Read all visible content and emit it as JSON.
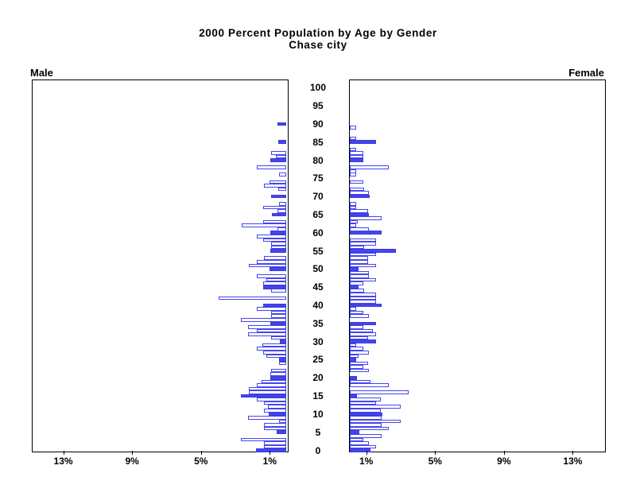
{
  "title": {
    "line1": "2000 Percent Population by Age by Gender",
    "line2": "Chase city"
  },
  "left_label": "Male",
  "right_label": "Female",
  "chart_data": {
    "type": "bar",
    "subtype": "population-pyramid",
    "title": "2000 Percent Population by Age by Gender",
    "subtitle": "Chase city",
    "unit": "percent of population",
    "orientation": "horizontal back-to-back",
    "age_axis": {
      "min": 0,
      "max": 100,
      "label_step": 5,
      "tick_labels": [
        "0",
        "5",
        "10",
        "15",
        "20",
        "25",
        "30",
        "35",
        "40",
        "45",
        "50",
        "55",
        "60",
        "65",
        "70",
        "75",
        "80",
        "85",
        "90",
        "95",
        "100"
      ]
    },
    "pct_axis": {
      "tick_values": [
        1,
        5,
        9,
        13
      ],
      "male_tick_labels": [
        "13%",
        "9%",
        "5%",
        "1%"
      ],
      "female_tick_labels": [
        "1%",
        "5%",
        "9%",
        "13%"
      ],
      "max": 14.8,
      "grid": false
    },
    "filled_bar_age_multiple": 5,
    "legend_position": "none",
    "series": [
      {
        "name": "Male",
        "side": "left",
        "values_by_age": [
          1.77,
          1.31,
          1.31,
          2.62,
          0,
          0.55,
          1.31,
          1.31,
          0.43,
          2.2,
          1.0,
          1.31,
          1.08,
          1.31,
          1.7,
          2.65,
          2.18,
          2.18,
          1.69,
          1.41,
          0.92,
          0.92,
          0.88,
          0,
          0.43,
          0.43,
          1.15,
          1.34,
          1.72,
          1.38,
          0.38,
          0.88,
          2.2,
          1.72,
          2.2,
          0.92,
          2.62,
          0.88,
          0.88,
          1.72,
          1.34,
          0,
          3.92,
          0,
          0.88,
          1.34,
          1.34,
          1.15,
          1.69,
          0,
          0.95,
          2.15,
          1.72,
          1.31,
          0,
          0.92,
          0.88,
          0.88,
          1.34,
          1.72,
          0.92,
          0.5,
          2.6,
          1.34,
          0,
          0.82,
          0.49,
          1.34,
          0.42,
          0,
          0.88,
          0,
          0.46,
          1.31,
          0.97,
          0,
          0.4,
          0,
          1.72,
          0,
          0.92,
          0.58,
          0.87,
          0,
          0,
          0.45,
          0,
          0,
          0,
          0,
          0.49
        ]
      },
      {
        "name": "Female",
        "side": "right",
        "values_by_age": [
          1.2,
          1.51,
          1.09,
          0.77,
          1.86,
          0.55,
          2.28,
          1.86,
          2.97,
          1.86,
          1.89,
          1.82,
          2.97,
          1.54,
          1.82,
          0.4,
          3.43,
          0,
          2.28,
          1.2,
          0.43,
          0,
          1.09,
          0.77,
          1.05,
          0.38,
          0.51,
          1.09,
          0.77,
          0.38,
          1.51,
          1.05,
          1.51,
          1.35,
          0.77,
          1.51,
          0,
          1.12,
          0.77,
          0.38,
          1.86,
          1.51,
          1.51,
          1.51,
          0.82,
          0.51,
          0.77,
          1.51,
          1.09,
          1.09,
          0.51,
          1.51,
          1.05,
          1.05,
          1.51,
          2.66,
          0.82,
          1.51,
          1.51,
          0,
          1.86,
          1.12,
          0.38,
          0.46,
          1.86,
          1.12,
          1.05,
          0.38,
          0.38,
          0,
          1.17,
          1.12,
          0.82,
          0,
          0.77,
          0,
          0.38,
          0.38,
          2.28,
          0,
          0.77,
          0.77,
          0.77,
          0.38,
          0,
          1.51,
          0.38,
          0,
          0,
          0.38,
          0
        ]
      }
    ],
    "colors": {
      "bar_outline": "#4545ef",
      "bar_fill": "#4545ef",
      "hollow_fill": "#ffffff",
      "axis": "#000000",
      "text": "#000000"
    }
  }
}
